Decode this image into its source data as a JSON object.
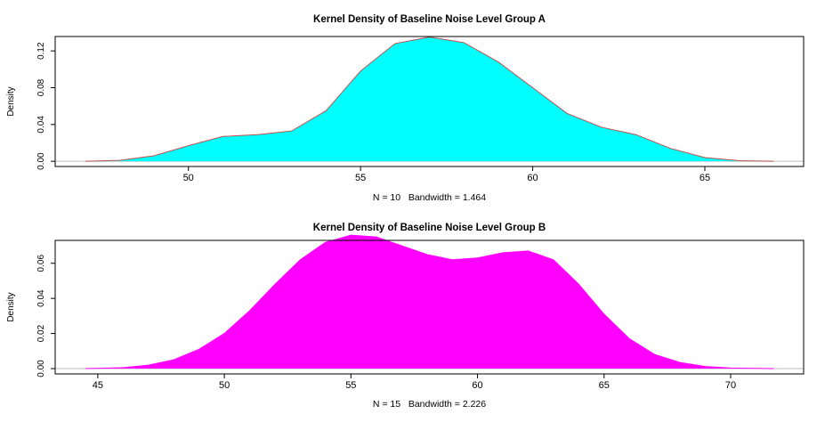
{
  "chart_data": [
    {
      "type": "area",
      "title": "Kernel Density of Baseline Noise Level Group A",
      "xlabel": "N = 10   Bandwidth = 1.464",
      "ylabel": "Density",
      "xlim": [
        47,
        67
      ],
      "ylim": [
        0,
        0.13
      ],
      "xticks": [
        50,
        55,
        60,
        65
      ],
      "yticks": [
        "0.00",
        "0.04",
        "0.08",
        "0.12"
      ],
      "fill_color": "#00ffff",
      "line_color": "#c0504d",
      "grid": false,
      "x": [
        47.0,
        48.0,
        49.0,
        50.0,
        51.0,
        52.0,
        53.0,
        54.0,
        55.0,
        56.0,
        57.0,
        58.0,
        59.0,
        60.0,
        61.0,
        62.0,
        63.0,
        64.0,
        65.0,
        66.0,
        67.0
      ],
      "y": [
        0.0,
        0.001,
        0.006,
        0.017,
        0.027,
        0.029,
        0.033,
        0.055,
        0.098,
        0.128,
        0.135,
        0.129,
        0.108,
        0.08,
        0.052,
        0.037,
        0.029,
        0.014,
        0.004,
        0.0007,
        0.0
      ]
    },
    {
      "type": "area",
      "title": "Kernel Density of Baseline Noise Level Group B",
      "xlabel": "N = 15   Bandwidth = 2.226",
      "ylabel": "Density",
      "xlim": [
        44.5,
        71.7
      ],
      "ylim": [
        0,
        0.07
      ],
      "xticks": [
        45,
        50,
        55,
        60,
        65,
        70
      ],
      "yticks": [
        "0.00",
        "0.02",
        "0.04",
        "0.06"
      ],
      "fill_color": "#ff00ff",
      "line_color": "#ff00ff",
      "grid": false,
      "x": [
        44.5,
        46.0,
        47.0,
        48.0,
        49.0,
        50.0,
        51.0,
        52.0,
        53.0,
        54.0,
        55.0,
        56.0,
        57.0,
        58.0,
        59.0,
        60.0,
        61.0,
        62.0,
        63.0,
        64.0,
        65.0,
        66.0,
        67.0,
        68.0,
        69.0,
        70.0,
        71.7
      ],
      "y": [
        0.0,
        0.0005,
        0.002,
        0.005,
        0.011,
        0.02,
        0.033,
        0.048,
        0.062,
        0.072,
        0.076,
        0.075,
        0.07,
        0.065,
        0.062,
        0.063,
        0.066,
        0.067,
        0.062,
        0.048,
        0.031,
        0.017,
        0.008,
        0.0035,
        0.0012,
        0.0003,
        0.0
      ]
    }
  ]
}
